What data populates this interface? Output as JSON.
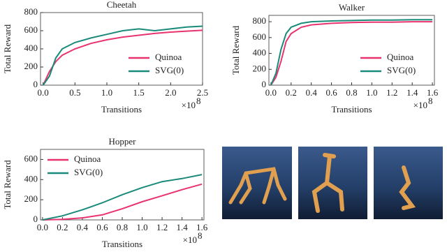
{
  "chart_data": [
    {
      "type": "line",
      "title": "Cheetah",
      "x_label": "Transitions",
      "y_label": "Total Reward",
      "x_multiplier": "×10",
      "x_exponent": "8",
      "x": [
        0,
        0.1,
        0.2,
        0.3,
        0.5,
        0.75,
        1.0,
        1.25,
        1.5,
        1.75,
        2.0,
        2.25,
        2.5
      ],
      "series": [
        {
          "name": "Quinoa",
          "color": "#e8336e",
          "values": [
            0,
            150,
            260,
            330,
            400,
            460,
            500,
            530,
            550,
            570,
            585,
            595,
            605
          ]
        },
        {
          "name": "SVG(0)",
          "color": "#1a8a7a",
          "values": [
            0,
            100,
            300,
            400,
            470,
            520,
            560,
            600,
            620,
            600,
            620,
            640,
            650
          ]
        }
      ],
      "xlim": [
        -0.04,
        2.5
      ],
      "ylim": [
        0,
        800
      ],
      "xticks": [
        {
          "value": 0,
          "label": "0.0"
        },
        {
          "value": 0.5,
          "label": "0.5"
        },
        {
          "value": 1,
          "label": "1.0"
        },
        {
          "value": 1.5,
          "label": "1.5"
        },
        {
          "value": 2,
          "label": "2.0"
        },
        {
          "value": 2.5,
          "label": "2.5"
        }
      ],
      "yticks": [
        0,
        200,
        400,
        600,
        800
      ],
      "legend": "lower right"
    },
    {
      "type": "line",
      "title": "Walker",
      "x_label": "Transitions",
      "y_label": "Total Reward",
      "x_multiplier": "×10",
      "x_exponent": "8",
      "x": [
        0,
        0.05,
        0.1,
        0.15,
        0.2,
        0.3,
        0.4,
        0.6,
        0.8,
        1.0,
        1.2,
        1.4,
        1.6
      ],
      "series": [
        {
          "name": "Quinoa",
          "color": "#e8336e",
          "values": [
            0,
            100,
            300,
            550,
            650,
            730,
            760,
            780,
            790,
            795,
            795,
            800,
            800
          ]
        },
        {
          "name": "SVG(0)",
          "color": "#1a8a7a",
          "values": [
            0,
            150,
            450,
            650,
            730,
            780,
            800,
            810,
            815,
            820,
            820,
            825,
            825
          ]
        }
      ],
      "xlim": [
        -0.02,
        1.62
      ],
      "ylim": [
        0,
        880
      ],
      "xticks": [
        {
          "value": 0,
          "label": "0.0"
        },
        {
          "value": 0.2,
          "label": "0.2"
        },
        {
          "value": 0.4,
          "label": "0.4"
        },
        {
          "value": 0.6,
          "label": "0.6"
        },
        {
          "value": 0.8,
          "label": "0.8"
        },
        {
          "value": 1,
          "label": "1.0"
        },
        {
          "value": 1.2,
          "label": "1.2"
        },
        {
          "value": 1.4,
          "label": "1.4"
        },
        {
          "value": 1.6,
          "label": "1.6"
        }
      ],
      "yticks": [
        0,
        200,
        400,
        600,
        800
      ],
      "legend": "lower right"
    },
    {
      "type": "line",
      "title": "Hopper",
      "x_label": "Transitions",
      "y_label": "Total Reward",
      "x_multiplier": "×10",
      "x_exponent": "8",
      "x": [
        0,
        0.2,
        0.4,
        0.6,
        0.8,
        1.0,
        1.2,
        1.4,
        1.6
      ],
      "series": [
        {
          "name": "Quinoa",
          "color": "#e8336e",
          "values": [
            0,
            5,
            20,
            50,
            110,
            180,
            240,
            300,
            355
          ]
        },
        {
          "name": "SVG(0)",
          "color": "#1a8a7a",
          "values": [
            0,
            40,
            100,
            170,
            250,
            320,
            380,
            410,
            450
          ]
        }
      ],
      "xlim": [
        -0.02,
        1.62
      ],
      "ylim": [
        0,
        700
      ],
      "xticks": [
        {
          "value": 0,
          "label": "0.0"
        },
        {
          "value": 0.2,
          "label": "0.2"
        },
        {
          "value": 0.4,
          "label": "0.4"
        },
        {
          "value": 0.6,
          "label": "0.6"
        },
        {
          "value": 0.8,
          "label": "0.8"
        },
        {
          "value": 1,
          "label": "1.0"
        },
        {
          "value": 1.2,
          "label": "1.2"
        },
        {
          "value": 1.4,
          "label": "1.4"
        },
        {
          "value": 1.6,
          "label": "1.6"
        }
      ],
      "yticks": [
        0,
        200,
        400,
        600
      ],
      "legend": "upper left"
    }
  ]
}
